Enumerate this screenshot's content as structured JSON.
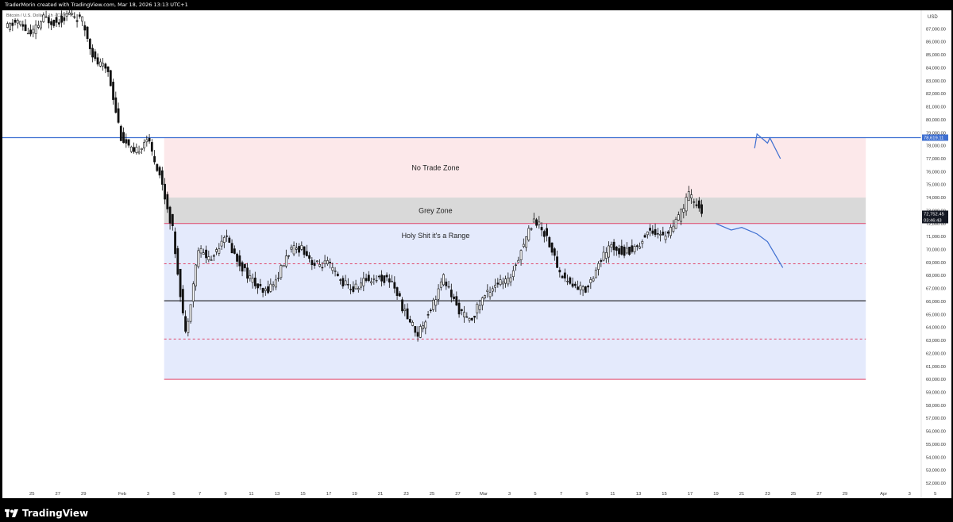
{
  "header": {
    "caption": "TraderMorin created with TradingView.com, Mar 18, 2026 13:13 UTC+1",
    "symbol": "Bitcoin / U.S. Dollar · 1h · CRYPTO"
  },
  "footer": {
    "brand": "TradingView"
  },
  "chart_data": {
    "type": "candlestick",
    "currency_label": "USD",
    "y_axis": {
      "range": [
        52000,
        88000
      ],
      "tick_labels": [
        "87,000.00",
        "86,000.00",
        "85,000.00",
        "84,000.00",
        "83,000.00",
        "82,000.00",
        "81,000.00",
        "80,000.00",
        "79,000.00",
        "78,000.00",
        "77,000.00",
        "76,000.00",
        "75,000.00",
        "74,000.00",
        "73,000.00",
        "72,000.00",
        "71,000.00",
        "70,000.00",
        "69,000.00",
        "68,000.00",
        "67,000.00",
        "66,000.00",
        "65,000.00",
        "64,000.00",
        "63,000.00",
        "62,000.00",
        "61,000.00",
        "60,000.00",
        "59,000.00",
        "58,000.00",
        "57,000.00",
        "56,000.00",
        "55,000.00",
        "54,000.00",
        "53,000.00",
        "52,000.00"
      ]
    },
    "x_axis": {
      "tick_labels": [
        "25",
        "27",
        "29",
        "Feb",
        "3",
        "5",
        "7",
        "9",
        "11",
        "13",
        "15",
        "17",
        "19",
        "21",
        "23",
        "25",
        "27",
        "Mar",
        "3",
        "5",
        "7",
        "9",
        "11",
        "13",
        "15",
        "17",
        "19",
        "21",
        "23",
        "25",
        "27",
        "29",
        "Apr",
        "3",
        "5"
      ]
    },
    "price_tags": {
      "resistance": "78,619.11",
      "last_price": "72,752.45",
      "countdown": "03:46:43"
    },
    "zones": [
      {
        "name": "No Trade Zone",
        "from": 74000,
        "to": 78619,
        "color": "#fce8ea"
      },
      {
        "name": "Grey Zone",
        "from": 72000,
        "to": 74000,
        "color": "#d9d9d9"
      },
      {
        "name": "Holy Shit it's a Range",
        "from": 60000,
        "to": 72000,
        "color": "#e4eafc"
      }
    ],
    "levels": [
      {
        "price": 78619.11,
        "color": "#3e6fd1",
        "style": "solid"
      },
      {
        "price": 72000,
        "color": "#e0476a",
        "style": "solid"
      },
      {
        "price": 68900,
        "color": "#e0476a",
        "style": "dashed"
      },
      {
        "price": 66050,
        "color": "#000000",
        "style": "solid"
      },
      {
        "price": 63100,
        "color": "#e0476a",
        "style": "dashed"
      },
      {
        "price": 60000,
        "color": "#e0476a",
        "style": "solid"
      }
    ],
    "anchors": [
      [
        "Jan 23",
        87000
      ],
      [
        "Jan 24",
        87600
      ],
      [
        "Jan 25",
        86500
      ],
      [
        "Jan 26",
        87800
      ],
      [
        "Jan 27",
        87500
      ],
      [
        "Jan 28",
        88200
      ],
      [
        "Jan 29",
        87600
      ],
      [
        "Jan 30",
        84500
      ],
      [
        "Jan 31",
        83800
      ],
      [
        "Feb 1",
        78700
      ],
      [
        "Feb 2",
        77300
      ],
      [
        "Feb 3",
        78600
      ],
      [
        "Feb 4",
        75800
      ],
      [
        "Feb 5",
        71500
      ],
      [
        "Feb 6",
        63500
      ],
      [
        "Feb 7",
        70000
      ],
      [
        "Feb 8",
        69200
      ],
      [
        "Feb 9",
        71200
      ],
      [
        "Feb 10",
        69200
      ],
      [
        "Feb 11",
        67800
      ],
      [
        "Feb 12",
        66600
      ],
      [
        "Feb 13",
        67600
      ],
      [
        "Feb 14",
        69800
      ],
      [
        "Feb 15",
        70200
      ],
      [
        "Feb 16",
        68800
      ],
      [
        "Feb 17",
        68900
      ],
      [
        "Feb 18",
        67600
      ],
      [
        "Feb 19",
        66900
      ],
      [
        "Feb 20",
        67700
      ],
      [
        "Feb 21",
        67800
      ],
      [
        "Feb 22",
        67600
      ],
      [
        "Feb 23",
        65100
      ],
      [
        "Feb 24",
        63500
      ],
      [
        "Feb 25",
        65500
      ],
      [
        "Feb 26",
        67800
      ],
      [
        "Feb 27",
        65600
      ],
      [
        "Feb 28",
        64400
      ],
      [
        "Mar 1",
        66200
      ],
      [
        "Mar 2",
        67400
      ],
      [
        "Mar 3",
        67500
      ],
      [
        "Mar 4",
        70000
      ],
      [
        "Mar 5",
        72400
      ],
      [
        "Mar 6",
        71000
      ],
      [
        "Mar 7",
        68200
      ],
      [
        "Mar 8",
        67200
      ],
      [
        "Mar 9",
        66900
      ],
      [
        "Mar 10",
        68900
      ],
      [
        "Mar 11",
        70300
      ],
      [
        "Mar 12",
        69800
      ],
      [
        "Mar 13",
        70200
      ],
      [
        "Mar 14",
        71600
      ],
      [
        "Mar 15",
        71000
      ],
      [
        "Mar 16",
        72000
      ],
      [
        "Mar 17",
        74200
      ],
      [
        "Mar 18",
        73000
      ]
    ],
    "projections": [
      {
        "color": "#3e6fd1",
        "points": [
          [
            "Mar 22",
            77800
          ],
          [
            "Mar 22",
            78900
          ],
          [
            "Mar 23",
            78200
          ],
          [
            "Mar 23",
            78600
          ],
          [
            "Mar 24",
            77000
          ]
        ]
      },
      {
        "color": "#3e6fd1",
        "points": [
          [
            "Mar 19",
            72000
          ],
          [
            "Mar 20",
            71500
          ],
          [
            "Mar 21",
            71700
          ],
          [
            "Mar 22",
            71200
          ],
          [
            "Mar 23",
            70600
          ],
          [
            "Mar 24",
            68600
          ]
        ]
      }
    ]
  }
}
